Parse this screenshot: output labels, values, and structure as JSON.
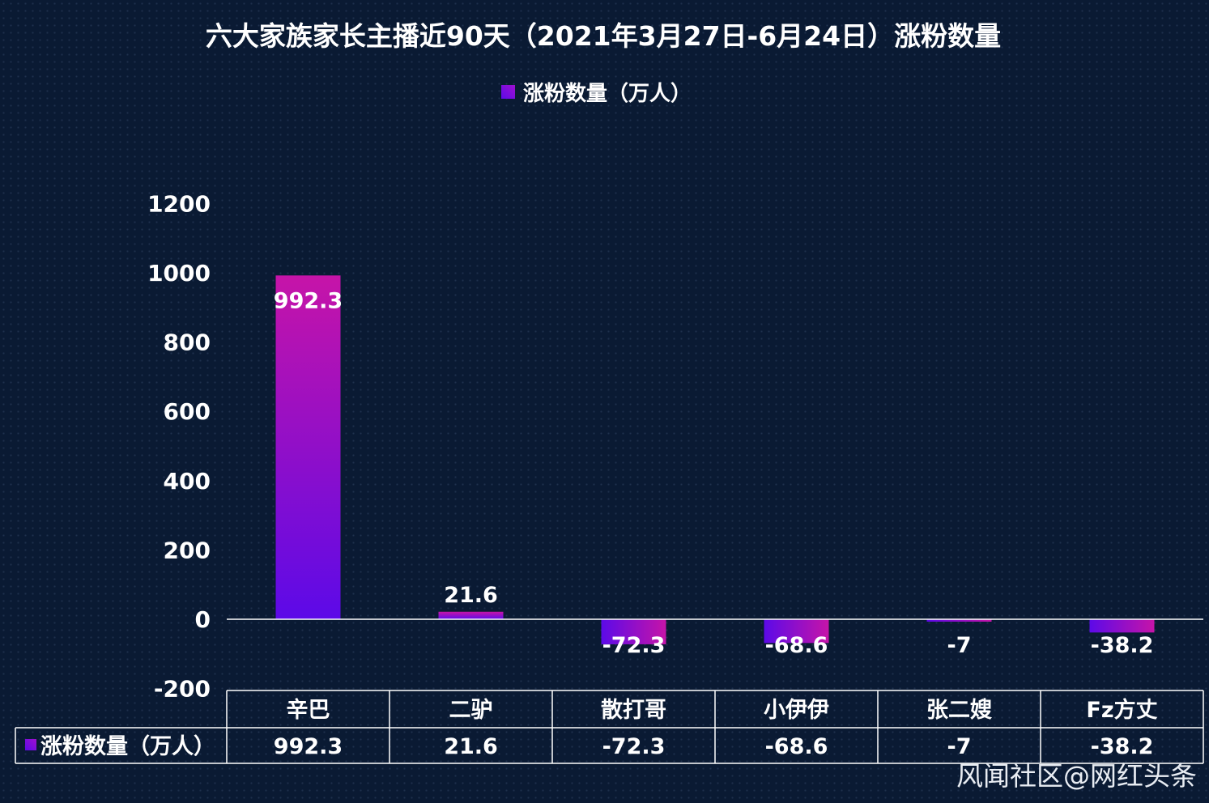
{
  "chart_data": {
    "type": "bar",
    "title": "六大家族家长主播近90天（2021年3月27日-6月24日）涨粉数量",
    "categories": [
      "辛巴",
      "二驴",
      "散打哥",
      "小伊伊",
      "张二嫂",
      "Fz方丈"
    ],
    "series": [
      {
        "name": "涨粉数量（万人）",
        "values": [
          992.3,
          21.6,
          -72.3,
          -68.6,
          -7,
          -38.2
        ],
        "labels": [
          "992.3",
          "21.6",
          "-72.3",
          "-68.6",
          "-7",
          "-38.2"
        ]
      }
    ],
    "ylim": [
      -200,
      1200
    ],
    "yticks": [
      -200,
      0,
      200,
      400,
      600,
      800,
      1000,
      1200
    ],
    "legend": "top-center",
    "data_table": true,
    "bar_gradient": [
      "#5c0ae8",
      "#c614a8"
    ]
  },
  "watermark": "风闻社区@网红头条",
  "colors": {
    "background": "#0a1a33",
    "text": "#ffffff"
  }
}
